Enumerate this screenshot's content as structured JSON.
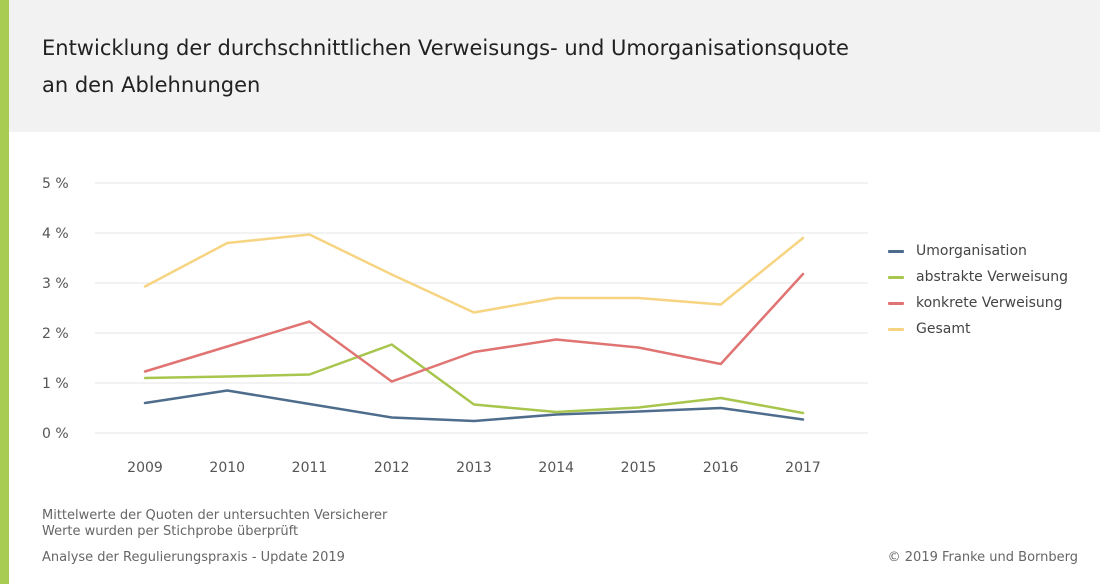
{
  "header": {
    "title_line1": "Entwicklung der durchschnittlichen Verweisungs- und Umorganisationsquote",
    "title_line2": "an den Ablehnungen"
  },
  "colors": {
    "accent": "#a8cc52",
    "header_bg": "#f2f2f2",
    "grid": "#e6e6e6"
  },
  "chart_data": {
    "type": "line",
    "title": "Entwicklung der durchschnittlichen Verweisungs- und Umorganisationsquote an den Ablehnungen",
    "xlabel": "",
    "ylabel": "",
    "categories": [
      "2009",
      "2010",
      "2011",
      "2012",
      "2013",
      "2014",
      "2015",
      "2016",
      "2017"
    ],
    "y_ticks": [
      {
        "value": 0,
        "label": "0 %"
      },
      {
        "value": 1,
        "label": "1 %"
      },
      {
        "value": 2,
        "label": "2 %"
      },
      {
        "value": 3,
        "label": "3 %"
      },
      {
        "value": 4,
        "label": "4 %"
      },
      {
        "value": 5,
        "label": "5 %"
      }
    ],
    "ylim": [
      0,
      5
    ],
    "grid": true,
    "legend_position": "right",
    "series": [
      {
        "name": "Umorganisation",
        "color": "#4e6d8c",
        "values": [
          0.6,
          0.85,
          0.58,
          0.31,
          0.24,
          0.37,
          0.43,
          0.5,
          0.27
        ]
      },
      {
        "name": "abstrakte Verweisung",
        "color": "#a8c64e",
        "values": [
          1.1,
          1.13,
          1.17,
          1.77,
          0.57,
          0.42,
          0.51,
          0.7,
          0.4
        ]
      },
      {
        "name": "konkrete Verweisung",
        "color": "#e07473",
        "values": [
          1.23,
          1.73,
          2.23,
          1.03,
          1.62,
          1.87,
          1.71,
          1.38,
          3.18
        ]
      },
      {
        "name": "Gesamt",
        "color": "#f6d482",
        "values": [
          2.93,
          3.8,
          3.97,
          3.17,
          2.41,
          2.7,
          2.7,
          2.57,
          3.9
        ]
      }
    ]
  },
  "footer": {
    "note1": "Mittelwerte der Quoten der untersuchten Versicherer",
    "note2": "Werte wurden per Stichprobe überprüft",
    "source": "Analyse der Regulierungspraxis - Update 2019",
    "copyright": "© 2019 Franke und Bornberg"
  }
}
